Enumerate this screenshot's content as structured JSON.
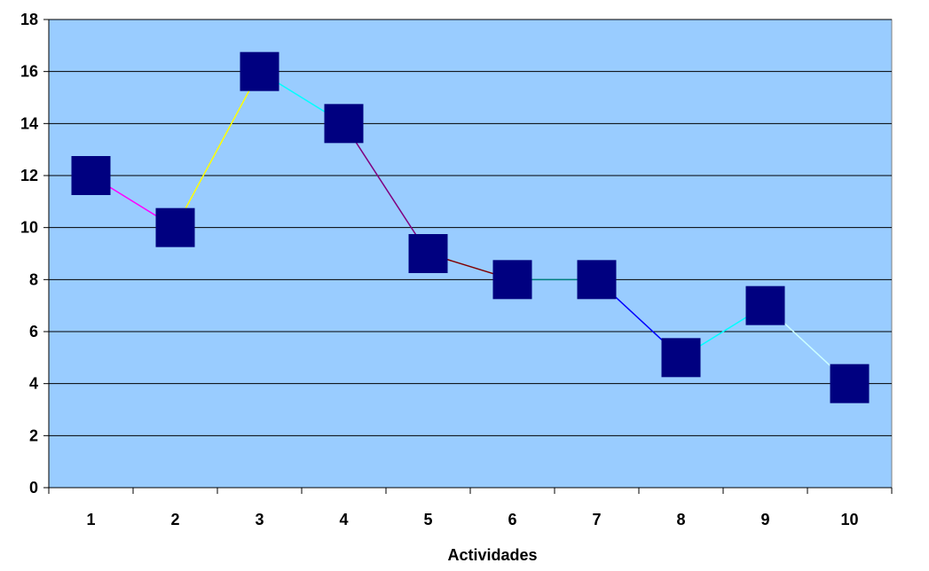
{
  "chart_data": {
    "type": "line",
    "title": "",
    "xlabel": "Actividades",
    "ylabel": "",
    "categories": [
      "1",
      "2",
      "3",
      "4",
      "5",
      "6",
      "7",
      "8",
      "9",
      "10"
    ],
    "values": [
      12,
      10,
      16,
      14,
      9,
      8,
      8,
      5,
      7,
      4
    ],
    "ylim": [
      0,
      18
    ],
    "yticks": [
      0,
      2,
      4,
      6,
      8,
      10,
      12,
      14,
      16,
      18
    ],
    "grid": true,
    "legend": "none",
    "colors": {
      "plot_background": "#99CCFF",
      "marker": "#000080",
      "gridline": "#000000",
      "segments": [
        "#FF00FF",
        "#FFFF00",
        "#00FFFF",
        "#800080",
        "#800000",
        "#008080",
        "#0000FF",
        "#00FFFF",
        "#CCFFFF"
      ]
    }
  }
}
